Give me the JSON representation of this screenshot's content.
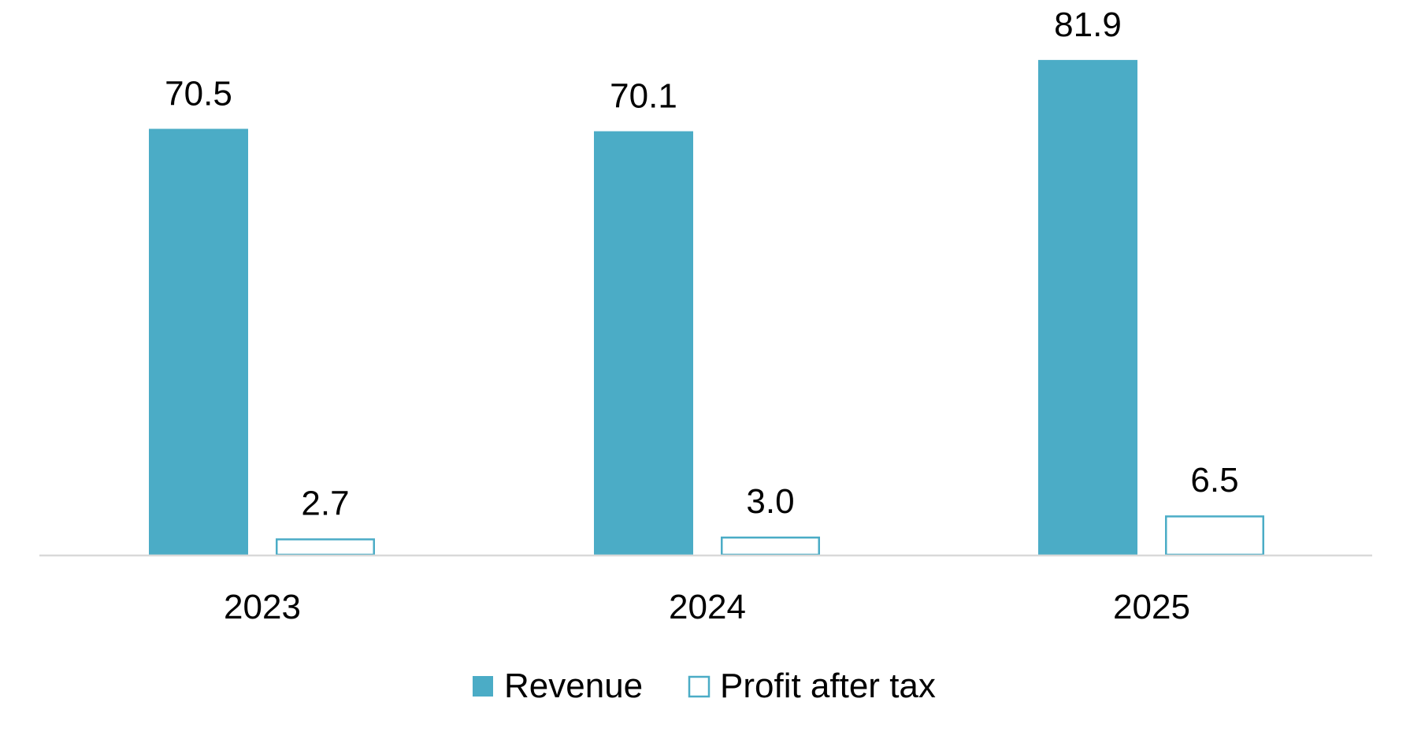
{
  "chart_data": {
    "type": "bar",
    "categories": [
      "2023",
      "2024",
      "2025"
    ],
    "series": [
      {
        "name": "Revenue",
        "values": [
          70.5,
          70.1,
          81.9
        ],
        "style": "filled",
        "color": "#4BACC6"
      },
      {
        "name": "Profit after tax",
        "values": [
          2.7,
          3.0,
          6.5
        ],
        "style": "outline",
        "color": "#4BACC6"
      }
    ],
    "value_labels": [
      [
        "70.5",
        "70.1",
        "81.9"
      ],
      [
        "2.7",
        "3.0",
        "6.5"
      ]
    ],
    "title": "",
    "xlabel": "",
    "ylabel": "",
    "ylim": [
      0,
      90
    ],
    "grid": false,
    "legend_position": "bottom",
    "colors": {
      "bar": "#4BACC6",
      "axis": "#D9D9D9",
      "text": "#000000"
    }
  }
}
